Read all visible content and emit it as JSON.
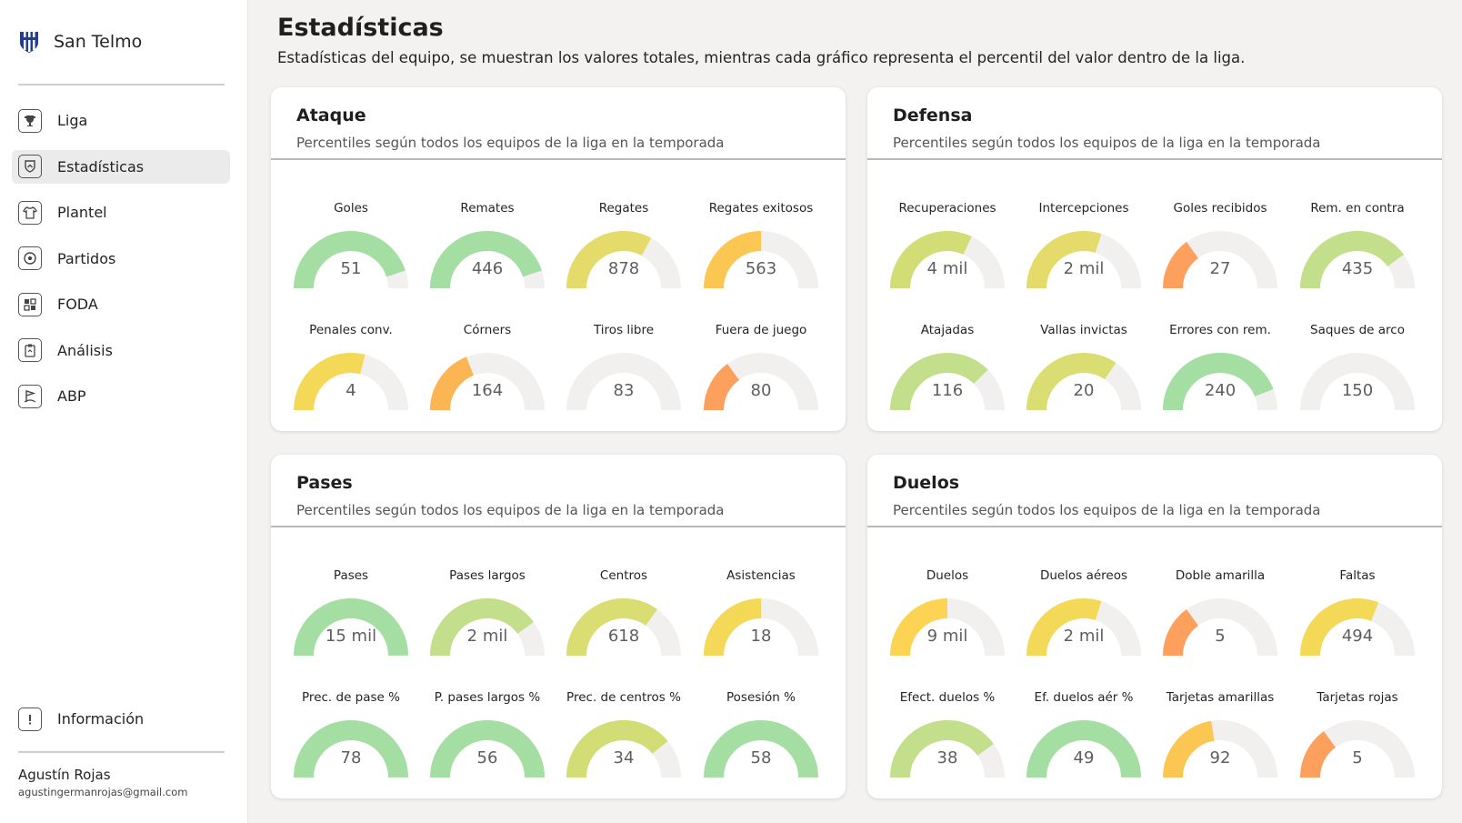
{
  "sidebar": {
    "brand": "San Telmo",
    "nav": [
      {
        "label": "Liga",
        "icon": "trophy-icon"
      },
      {
        "label": "Estadísticas",
        "icon": "shield-chart-icon",
        "active": true
      },
      {
        "label": "Plantel",
        "icon": "jersey-icon"
      },
      {
        "label": "Partidos",
        "icon": "ball-icon"
      },
      {
        "label": "FODA",
        "icon": "grid-icon"
      },
      {
        "label": "Análisis",
        "icon": "clipboard-icon"
      },
      {
        "label": "ABP",
        "icon": "corner-flag-icon"
      }
    ],
    "info_label": "Información",
    "user": {
      "name": "Agustín Rojas",
      "email": "agustingermanrojas@gmail.com"
    }
  },
  "header": {
    "title": "Estadísticas",
    "subtitle": "Estadísticas del equipo, se muestran los valores totales, mientras cada gráfico representa el percentil del valor dentro de la liga."
  },
  "colors": {
    "track": "#f1f0ef",
    "green": "#a5dea3",
    "lightgreen": "#c4df8b",
    "olive": "#dddf74",
    "yellow": "#f3d957",
    "orange": "#fbbd4f",
    "deeporange": "#fda05e"
  },
  "cards": [
    {
      "title": "Ataque",
      "subtitle": "Percentiles según todos los equipos de la liga en la temporada",
      "gauges": [
        {
          "label": "Goles",
          "value": "51",
          "percentile": 0.9,
          "color": "#a5dea3"
        },
        {
          "label": "Remates",
          "value": "446",
          "percentile": 0.9,
          "color": "#a5dea3"
        },
        {
          "label": "Regates",
          "value": "878",
          "percentile": 0.66,
          "color": "#e5db6b"
        },
        {
          "label": "Regates exitosos",
          "value": "563",
          "percentile": 0.5,
          "color": "#fcc653"
        },
        {
          "label": "Penales conv.",
          "value": "4",
          "percentile": 0.58,
          "color": "#f3d957"
        },
        {
          "label": "Córners",
          "value": "164",
          "percentile": 0.38,
          "color": "#fbb553"
        },
        {
          "label": "Tiros libre",
          "value": "83",
          "percentile": 0.0,
          "color": "#fbb553"
        },
        {
          "label": "Fuera de juego",
          "value": "80",
          "percentile": 0.3,
          "color": "#fda05e"
        }
      ]
    },
    {
      "title": "Defensa",
      "subtitle": "Percentiles según todos los equipos de la liga en la temporada",
      "gauges": [
        {
          "label": "Recuperaciones",
          "value": "4 mil",
          "percentile": 0.64,
          "color": "#d3dd76"
        },
        {
          "label": "Intercepciones",
          "value": "2 mil",
          "percentile": 0.6,
          "color": "#e5db6b"
        },
        {
          "label": "Goles recibidos",
          "value": "27",
          "percentile": 0.3,
          "color": "#fda05e"
        },
        {
          "label": "Rem. en contra",
          "value": "435",
          "percentile": 0.8,
          "color": "#c4df8b"
        },
        {
          "label": "Atajadas",
          "value": "116",
          "percentile": 0.75,
          "color": "#c4df8b"
        },
        {
          "label": "Vallas invictas",
          "value": "20",
          "percentile": 0.69,
          "color": "#d9dd72"
        },
        {
          "label": "Errores con rem.",
          "value": "240",
          "percentile": 0.88,
          "color": "#a5dea3"
        },
        {
          "label": "Saques de arco",
          "value": "150",
          "percentile": 0.0,
          "color": "#a5dea3"
        }
      ]
    },
    {
      "title": "Pases",
      "subtitle": "Percentiles según todos los equipos de la liga en la temporada",
      "gauges": [
        {
          "label": "Pases",
          "value": "15 mil",
          "percentile": 1.0,
          "color": "#a5dea3"
        },
        {
          "label": "Pases largos",
          "value": "2 mil",
          "percentile": 0.8,
          "color": "#c4df8b"
        },
        {
          "label": "Centros",
          "value": "618",
          "percentile": 0.7,
          "color": "#d9dd72"
        },
        {
          "label": "Asistencias",
          "value": "18",
          "percentile": 0.5,
          "color": "#f3d957"
        },
        {
          "label": "Prec. de pase %",
          "value": "78",
          "percentile": 1.0,
          "color": "#a5dea3"
        },
        {
          "label": "P. pases largos %",
          "value": "56",
          "percentile": 1.0,
          "color": "#a5dea3"
        },
        {
          "label": "Prec. de centros %",
          "value": "34",
          "percentile": 0.78,
          "color": "#d3dd76"
        },
        {
          "label": "Posesión %",
          "value": "58",
          "percentile": 1.0,
          "color": "#a5dea3"
        }
      ]
    },
    {
      "title": "Duelos",
      "subtitle": "Percentiles según todos los equipos de la liga en la temporada",
      "gauges": [
        {
          "label": "Duelos",
          "value": "9 mil",
          "percentile": 0.5,
          "color": "#fcd352"
        },
        {
          "label": "Duelos aéreos",
          "value": "2 mil",
          "percentile": 0.6,
          "color": "#f3d957"
        },
        {
          "label": "Doble amarilla",
          "value": "5",
          "percentile": 0.3,
          "color": "#fda05e"
        },
        {
          "label": "Faltas",
          "value": "494",
          "percentile": 0.62,
          "color": "#f3d957"
        },
        {
          "label": "Efect. duelos %",
          "value": "38",
          "percentile": 0.8,
          "color": "#c4df8b"
        },
        {
          "label": "Ef. duelos aér %",
          "value": "49",
          "percentile": 1.0,
          "color": "#a5dea3"
        },
        {
          "label": "Tarjetas amarillas",
          "value": "92",
          "percentile": 0.45,
          "color": "#fcc653"
        },
        {
          "label": "Tarjetas rojas",
          "value": "5",
          "percentile": 0.3,
          "color": "#fda05e"
        }
      ]
    }
  ]
}
